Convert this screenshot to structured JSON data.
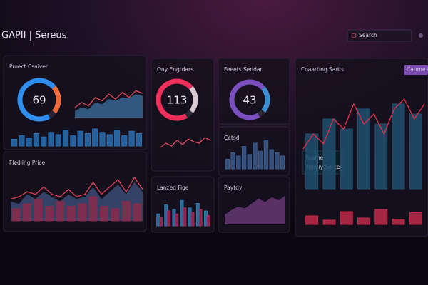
{
  "header": {
    "title": "GAPII | Sereus",
    "search": "Search"
  },
  "panels": [
    {
      "title": "Proect Csaiver"
    },
    {
      "title": "Fledling Price"
    },
    {
      "title": "Ony Engtdars"
    },
    {
      "title": "Feeets Sendar"
    },
    {
      "title": "Cetsd"
    },
    {
      "title": "Lanzed Fige"
    },
    {
      "title": "Paytdy"
    },
    {
      "title": "Coaarting Sadts",
      "button": "Canme M",
      "notes": [
        "Fuafhe",
        "Pnopiy Sercet"
      ]
    }
  ],
  "gauges": [
    {
      "value": 69
    },
    {
      "value": 113
    },
    {
      "value": 43
    }
  ],
  "charts": [
    {
      "ylim": [
        0,
        100
      ],
      "series": [
        {
          "type": "area",
          "color": "#3a6a9a",
          "values": [
            20,
            30,
            25,
            45,
            40,
            55,
            50,
            60,
            58,
            70,
            65
          ]
        },
        {
          "type": "line",
          "color": "#e04a5a",
          "values": [
            30,
            45,
            35,
            60,
            50,
            70,
            55,
            75,
            60,
            80,
            72
          ]
        }
      ]
    },
    {
      "ylim": [
        0,
        100
      ],
      "series": [
        {
          "type": "bar",
          "color": "#2a6fb0",
          "values": [
            30,
            45,
            35,
            55,
            40,
            60,
            50,
            70,
            45,
            65,
            55,
            75,
            60,
            50,
            70,
            45,
            65,
            55
          ]
        }
      ]
    },
    {
      "ylim": [
        0,
        100
      ],
      "series": [
        {
          "type": "area",
          "color": "#3d4f7a",
          "values": [
            40,
            35,
            55,
            45,
            60,
            50,
            40,
            55,
            45,
            50,
            70,
            45,
            60,
            75,
            55,
            80,
            60
          ]
        },
        {
          "type": "bar",
          "color": "#8a2a4a",
          "values": [
            25,
            35,
            45,
            30,
            40,
            30,
            35,
            50,
            30,
            25,
            40,
            35
          ]
        },
        {
          "type": "line",
          "color": "#e0405a",
          "values": [
            45,
            50,
            60,
            55,
            70,
            55,
            50,
            65,
            50,
            55,
            80,
            55,
            70,
            85,
            60,
            90,
            65
          ]
        }
      ]
    },
    {
      "ylim": [
        0,
        100
      ],
      "series": [
        {
          "type": "line",
          "color": "#e04a5a",
          "values": [
            40,
            55,
            45,
            65,
            50,
            70,
            60,
            55,
            75,
            65
          ]
        }
      ]
    },
    {
      "ylim": [
        0,
        100
      ],
      "series": [
        {
          "type": "bar",
          "color": "#3a5a8a",
          "values": [
            30,
            50,
            40,
            70,
            45,
            80,
            55,
            90,
            60,
            50,
            40
          ]
        }
      ]
    },
    {
      "ylim": [
        0,
        100
      ],
      "series": [
        {
          "type": "bar",
          "color": "#2f7ab0",
          "values": [
            40,
            70,
            55,
            85,
            60,
            75,
            50
          ]
        },
        {
          "type": "bar",
          "color": "#a02a5a",
          "values": [
            30,
            50,
            40,
            60,
            45,
            55,
            35
          ]
        }
      ]
    },
    {
      "ylim": [
        0,
        100
      ],
      "series": [
        {
          "type": "area",
          "color": "#6a3a7a",
          "values": [
            30,
            45,
            55,
            50,
            65,
            80,
            70,
            85,
            75,
            90
          ]
        }
      ]
    },
    {
      "ylim": [
        0,
        100
      ],
      "series": [
        {
          "type": "bar",
          "color": "#1f4f6f",
          "values": [
            55,
            70,
            60,
            80,
            65,
            85,
            75
          ]
        },
        {
          "type": "line",
          "color": "#e0304a",
          "values": [
            40,
            55,
            45,
            70,
            60,
            85,
            65,
            75,
            55,
            80,
            90,
            70,
            85
          ]
        }
      ]
    },
    {
      "ylim": [
        0,
        100
      ],
      "series": [
        {
          "type": "bar",
          "color": "#c02a4a",
          "values": [
            40,
            20,
            60,
            30,
            70,
            25,
            55
          ]
        }
      ]
    }
  ]
}
